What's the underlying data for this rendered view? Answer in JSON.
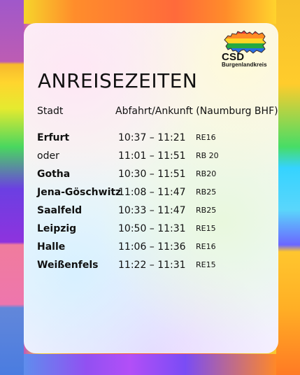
{
  "logo": {
    "line1": "CSD",
    "line2": "Burgenlandkreis"
  },
  "title": "ANREISEZEITEN",
  "headers": {
    "city": "Stadt",
    "times": "Abfahrt/Ankunft (Naumburg BHF)"
  },
  "rows": [
    {
      "city": "Erfurt",
      "times": "10:37 – 11:21",
      "train": "RE16"
    },
    {
      "city": "oder",
      "times": "11:01 – 11:51",
      "train": "RB 20"
    },
    {
      "city": "Gotha",
      "times": "10:30 – 11:51",
      "train": "RB20"
    },
    {
      "city": "Jena-Göschwitz",
      "times": "11:08 – 11:47",
      "train": "RB25"
    },
    {
      "city": "Saalfeld",
      "times": "10:33 – 11:47",
      "train": "RB25"
    },
    {
      "city": "Leipzig",
      "times": "10:50 – 11:31",
      "train": "RE15"
    },
    {
      "city": "Halle",
      "times": "11:06 – 11:36",
      "train": "RE16"
    },
    {
      "city": "Weißenfels",
      "times": "11:22 – 11:31",
      "train": "RE15"
    }
  ]
}
